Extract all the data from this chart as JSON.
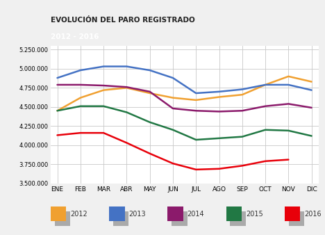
{
  "title": "EVOLUCIÓN DEL PARO REGISTRADO",
  "subtitle": "2012 - 2016",
  "title_bg": "#E8A800",
  "subtitle_bg": "#888888",
  "months": [
    "ENE",
    "FEB",
    "MAR",
    "ABR",
    "MAY",
    "JUN",
    "JUL",
    "AGO",
    "SEP",
    "OCT",
    "NOV",
    "DIC"
  ],
  "series": {
    "2012": {
      "color": "#F0A030",
      "values": [
        4450000,
        4620000,
        4720000,
        4750000,
        4680000,
        4620000,
        4590000,
        4630000,
        4660000,
        4790000,
        4900000,
        4830000
      ]
    },
    "2013": {
      "color": "#4472C4",
      "values": [
        4880000,
        4980000,
        5030000,
        5030000,
        4980000,
        4880000,
        4680000,
        4700000,
        4730000,
        4790000,
        4790000,
        4720000
      ]
    },
    "2014": {
      "color": "#8B1A6B",
      "values": [
        4790000,
        4790000,
        4780000,
        4760000,
        4700000,
        4480000,
        4450000,
        4440000,
        4450000,
        4510000,
        4540000,
        4490000
      ]
    },
    "2015": {
      "color": "#217844",
      "values": [
        4450000,
        4510000,
        4510000,
        4430000,
        4300000,
        4200000,
        4070000,
        4090000,
        4110000,
        4200000,
        4190000,
        4120000
      ]
    },
    "2016": {
      "color": "#E8000A",
      "values": [
        4130000,
        4160000,
        4160000,
        4030000,
        3890000,
        3760000,
        3680000,
        3690000,
        3730000,
        3790000,
        3810000,
        null
      ]
    }
  },
  "ylim": [
    3500000,
    5300000
  ],
  "yticks": [
    3500000,
    3750000,
    4000000,
    4250000,
    4500000,
    4750000,
    5000000,
    5250000
  ],
  "background_color": "#F0F0F0",
  "plot_bg": "#FFFFFF",
  "grid_color": "#C8C8C8",
  "legend_shadow_color": "#AAAAAA",
  "years_order": [
    "2012",
    "2013",
    "2014",
    "2015",
    "2016"
  ]
}
